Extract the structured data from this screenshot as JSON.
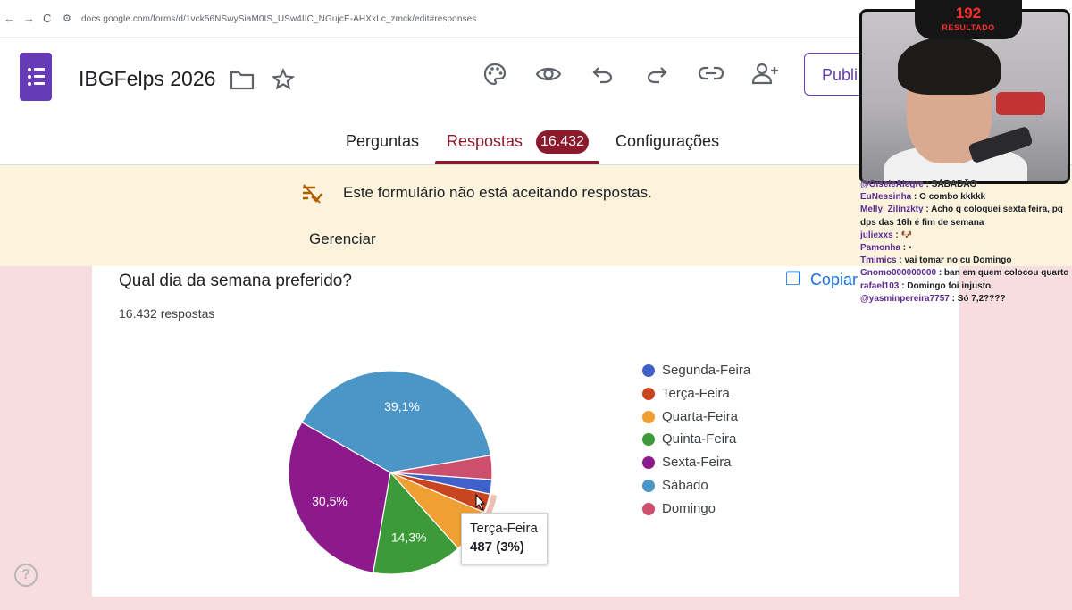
{
  "browser": {
    "back": "←",
    "forward": "→",
    "reload": "C",
    "url": "docs.google.com/forms/d/1vck56NSwySiaM0IS_USw4IIC_NGujcE-AHXxLc_zmck/edit#responses"
  },
  "header": {
    "title": "IBGFelps 2026",
    "publish_label": "Publi",
    "tabs": [
      {
        "label": "Perguntas"
      },
      {
        "label": "Respostas",
        "badge": "16.432"
      },
      {
        "label": "Configurações"
      }
    ],
    "accent_color": "#8b1a2c",
    "forms_color": "#673ab7"
  },
  "banner": {
    "message": "Este formulário não está aceitando respostas.",
    "action": "Gerenciar"
  },
  "card": {
    "question": "Qual dia da semana preferido?",
    "response_count": "16.432 respostas",
    "copy_label": "Copiar"
  },
  "chart_data": {
    "type": "pie",
    "total": 16432,
    "categories": [
      "Segunda-Feira",
      "Terça-Feira",
      "Quarta-Feira",
      "Quinta-Feira",
      "Sexta-Feira",
      "Sábado",
      "Domingo"
    ],
    "values": [
      2.3,
      3.0,
      7.0,
      14.3,
      30.5,
      39.1,
      3.8
    ],
    "colors": [
      "#3f61c9",
      "#c9451f",
      "#f0a033",
      "#3d9a38",
      "#8c1a8c",
      "#4b96c6",
      "#cc4f6c"
    ],
    "slice_labels": {
      "Quinta-Feira": "14,3%",
      "Sexta-Feira": "30,5%",
      "Sábado": "39,1%"
    },
    "legend_position": "right",
    "highlighted": "Terça-Feira"
  },
  "tooltip": {
    "label": "Terça-Feira",
    "value": "487 (3%)"
  },
  "stream": {
    "count": "192",
    "count_label": "RESULTADO",
    "chat": [
      {
        "user": "@GiseleAlegre",
        "text": ": SÁBADÃO"
      },
      {
        "user": "EuNessinha",
        "text": ": O combo kkkkk"
      },
      {
        "user": "Melly_Zilinzkty",
        "text": ": Acho q coloquei sexta feira, pq dps das 16h é fim de semana"
      },
      {
        "user": "juliexxs",
        "text": ": 🐶"
      },
      {
        "user": "Pamonha",
        "text": ": ▪"
      },
      {
        "user": "Tmimics",
        "text": ": vai tomar no cu Domingo"
      },
      {
        "user": "Gnomo000000000",
        "text": ": ban em quem colocou quarto"
      },
      {
        "user": "rafael103",
        "text": ": Domingo foi injusto"
      },
      {
        "user": "@yasminpereira7757",
        "text": ": Só 7,2????"
      }
    ]
  }
}
